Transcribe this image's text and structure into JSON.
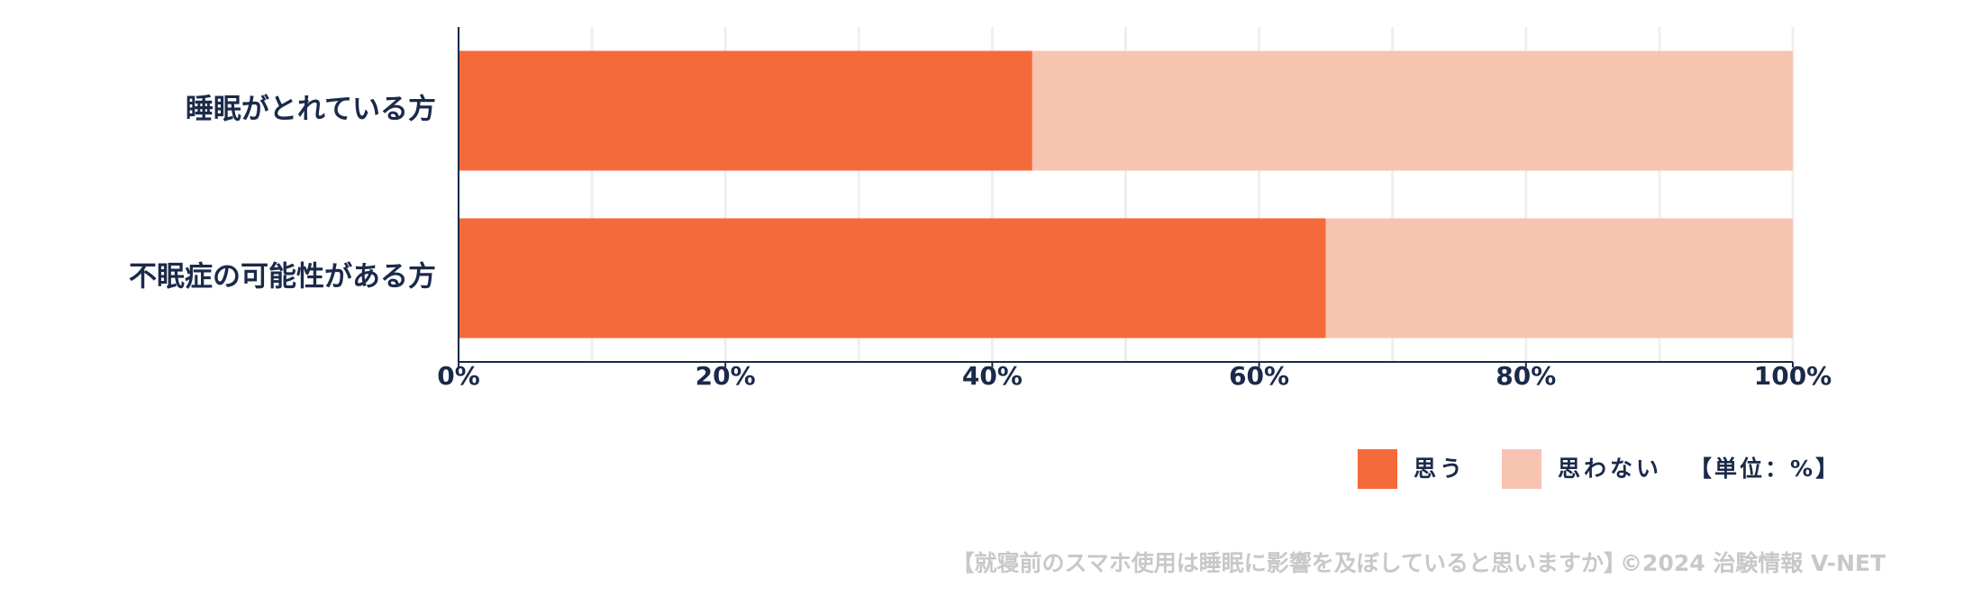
{
  "chart_data": {
    "type": "stacked_barh",
    "categories": [
      "睡眠がとれている方",
      "不眠症の可能性がある方"
    ],
    "series": [
      {
        "name": "思う",
        "color": "#f46a3a",
        "values": [
          43,
          65
        ]
      },
      {
        "name": "思わない",
        "color": "#f7c4b1",
        "values": [
          57,
          35
        ]
      }
    ],
    "xlim": [
      0,
      100
    ],
    "xticks": [
      {
        "value": 0,
        "label": "0%"
      },
      {
        "value": 20,
        "label": "20%"
      },
      {
        "value": 40,
        "label": "40%"
      },
      {
        "value": 60,
        "label": "60%"
      },
      {
        "value": 80,
        "label": "80%"
      },
      {
        "value": 100,
        "label": "100%"
      }
    ],
    "grid": true,
    "unit_note": "【単位：%】",
    "question": "【就寝前のスマホ使用は睡眠に影響を及ぼしていると思いますか】",
    "source": "©2024 治験情報 V-NET"
  }
}
